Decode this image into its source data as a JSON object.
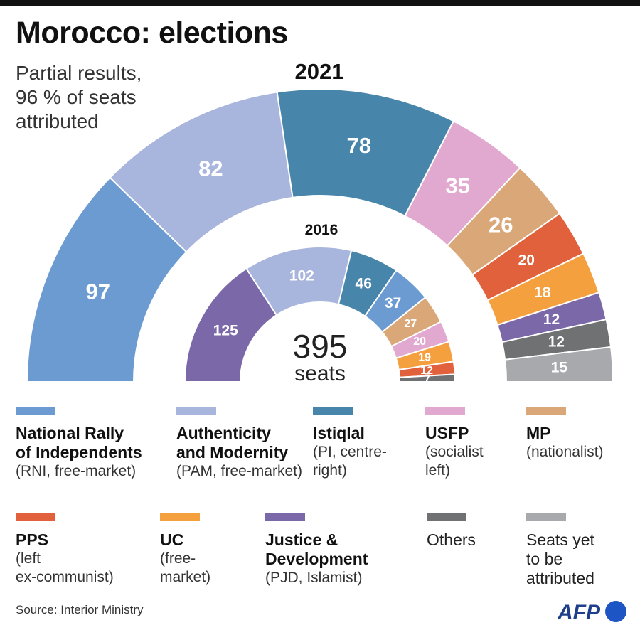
{
  "header": {
    "title": "Morocco: elections",
    "subtitle": "Partial results,\n96 % of seats\nattributed"
  },
  "chart_data": {
    "type": "pie",
    "subtype": "parliament-half-donut",
    "total_label": "395",
    "total_unit": "seats",
    "rings": [
      {
        "year": "2021",
        "segments": [
          {
            "party": "National Rally of Independents",
            "value": 97,
            "color": "#6c9bd2"
          },
          {
            "party": "Authenticity and Modernity",
            "value": 82,
            "color": "#a8b5dc"
          },
          {
            "party": "Istiqlal",
            "value": 78,
            "color": "#4785ab"
          },
          {
            "party": "USFP",
            "value": 35,
            "color": "#e1a9cf"
          },
          {
            "party": "MP",
            "value": 26,
            "color": "#daa878"
          },
          {
            "party": "PPS",
            "value": 20,
            "color": "#e2613d"
          },
          {
            "party": "UC",
            "value": 18,
            "color": "#f5a03e"
          },
          {
            "party": "Justice & Development",
            "value": 12,
            "color": "#7b68a9"
          },
          {
            "party": "Others",
            "value": 12,
            "color": "#6f7173"
          },
          {
            "party": "Seats yet to be attributed",
            "value": 15,
            "color": "#a7a9ac"
          }
        ]
      },
      {
        "year": "2016",
        "segments": [
          {
            "party": "Justice & Development",
            "value": 125,
            "color": "#7b68a9"
          },
          {
            "party": "Authenticity and Modernity",
            "value": 102,
            "color": "#a8b5dc"
          },
          {
            "party": "Istiqlal",
            "value": 46,
            "color": "#4785ab"
          },
          {
            "party": "National Rally of Independents",
            "value": 37,
            "color": "#6c9bd2"
          },
          {
            "party": "MP",
            "value": 27,
            "color": "#daa878"
          },
          {
            "party": "USFP",
            "value": 20,
            "color": "#e1a9cf"
          },
          {
            "party": "UC",
            "value": 19,
            "color": "#f5a03e"
          },
          {
            "party": "PPS",
            "value": 12,
            "color": "#e2613d"
          },
          {
            "party": "Others",
            "value": 7,
            "color": "#6f7173"
          }
        ]
      }
    ]
  },
  "legend": [
    {
      "name": "National Rally\nof Independents",
      "desc": "(RNI, free-market)",
      "color": "#6c9bd2"
    },
    {
      "name": "Authenticity\nand Modernity",
      "desc": "(PAM, free-market)",
      "color": "#a8b5dc"
    },
    {
      "name": "Istiqlal",
      "desc": "(PI, centre-\nright)",
      "color": "#4785ab"
    },
    {
      "name": "USFP",
      "desc": "(socialist\nleft)",
      "color": "#e1a9cf"
    },
    {
      "name": "MP",
      "desc": "(nationalist)",
      "color": "#daa878"
    },
    {
      "name": "PPS",
      "desc": "(left\nex-communist)",
      "color": "#e2613d"
    },
    {
      "name": "UC",
      "desc": "(free-\nmarket)",
      "color": "#f5a03e"
    },
    {
      "name": "Justice &\nDevelopment",
      "desc": "(PJD, Islamist)",
      "color": "#7b68a9"
    },
    {
      "name": "",
      "desc": "Others",
      "color": "#6f7173"
    },
    {
      "name": "",
      "desc": "Seats yet\nto be\nattributed",
      "color": "#a7a9ac"
    }
  ],
  "footer": {
    "source": "Source: Interior Ministry",
    "logo_text": "AFP"
  }
}
